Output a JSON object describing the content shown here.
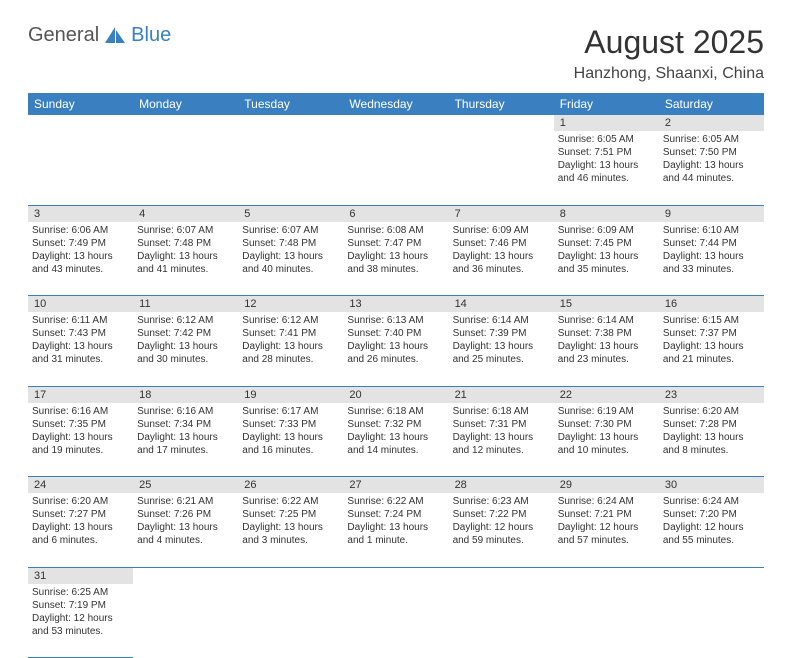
{
  "logo": {
    "part1": "General",
    "part2": "Blue"
  },
  "title": "August 2025",
  "location": "Hanzhong, Shaanxi, China",
  "colors": {
    "header_bg": "#3a7fbf",
    "daynum_bg": "#e3e3e3",
    "border": "#3a7fbf",
    "text": "#333"
  },
  "weekdays": [
    "Sunday",
    "Monday",
    "Tuesday",
    "Wednesday",
    "Thursday",
    "Friday",
    "Saturday"
  ],
  "weeks": [
    [
      null,
      null,
      null,
      null,
      null,
      {
        "n": "1",
        "sr": "Sunrise: 6:05 AM",
        "ss": "Sunset: 7:51 PM",
        "d1": "Daylight: 13 hours",
        "d2": "and 46 minutes."
      },
      {
        "n": "2",
        "sr": "Sunrise: 6:05 AM",
        "ss": "Sunset: 7:50 PM",
        "d1": "Daylight: 13 hours",
        "d2": "and 44 minutes."
      }
    ],
    [
      {
        "n": "3",
        "sr": "Sunrise: 6:06 AM",
        "ss": "Sunset: 7:49 PM",
        "d1": "Daylight: 13 hours",
        "d2": "and 43 minutes."
      },
      {
        "n": "4",
        "sr": "Sunrise: 6:07 AM",
        "ss": "Sunset: 7:48 PM",
        "d1": "Daylight: 13 hours",
        "d2": "and 41 minutes."
      },
      {
        "n": "5",
        "sr": "Sunrise: 6:07 AM",
        "ss": "Sunset: 7:48 PM",
        "d1": "Daylight: 13 hours",
        "d2": "and 40 minutes."
      },
      {
        "n": "6",
        "sr": "Sunrise: 6:08 AM",
        "ss": "Sunset: 7:47 PM",
        "d1": "Daylight: 13 hours",
        "d2": "and 38 minutes."
      },
      {
        "n": "7",
        "sr": "Sunrise: 6:09 AM",
        "ss": "Sunset: 7:46 PM",
        "d1": "Daylight: 13 hours",
        "d2": "and 36 minutes."
      },
      {
        "n": "8",
        "sr": "Sunrise: 6:09 AM",
        "ss": "Sunset: 7:45 PM",
        "d1": "Daylight: 13 hours",
        "d2": "and 35 minutes."
      },
      {
        "n": "9",
        "sr": "Sunrise: 6:10 AM",
        "ss": "Sunset: 7:44 PM",
        "d1": "Daylight: 13 hours",
        "d2": "and 33 minutes."
      }
    ],
    [
      {
        "n": "10",
        "sr": "Sunrise: 6:11 AM",
        "ss": "Sunset: 7:43 PM",
        "d1": "Daylight: 13 hours",
        "d2": "and 31 minutes."
      },
      {
        "n": "11",
        "sr": "Sunrise: 6:12 AM",
        "ss": "Sunset: 7:42 PM",
        "d1": "Daylight: 13 hours",
        "d2": "and 30 minutes."
      },
      {
        "n": "12",
        "sr": "Sunrise: 6:12 AM",
        "ss": "Sunset: 7:41 PM",
        "d1": "Daylight: 13 hours",
        "d2": "and 28 minutes."
      },
      {
        "n": "13",
        "sr": "Sunrise: 6:13 AM",
        "ss": "Sunset: 7:40 PM",
        "d1": "Daylight: 13 hours",
        "d2": "and 26 minutes."
      },
      {
        "n": "14",
        "sr": "Sunrise: 6:14 AM",
        "ss": "Sunset: 7:39 PM",
        "d1": "Daylight: 13 hours",
        "d2": "and 25 minutes."
      },
      {
        "n": "15",
        "sr": "Sunrise: 6:14 AM",
        "ss": "Sunset: 7:38 PM",
        "d1": "Daylight: 13 hours",
        "d2": "and 23 minutes."
      },
      {
        "n": "16",
        "sr": "Sunrise: 6:15 AM",
        "ss": "Sunset: 7:37 PM",
        "d1": "Daylight: 13 hours",
        "d2": "and 21 minutes."
      }
    ],
    [
      {
        "n": "17",
        "sr": "Sunrise: 6:16 AM",
        "ss": "Sunset: 7:35 PM",
        "d1": "Daylight: 13 hours",
        "d2": "and 19 minutes."
      },
      {
        "n": "18",
        "sr": "Sunrise: 6:16 AM",
        "ss": "Sunset: 7:34 PM",
        "d1": "Daylight: 13 hours",
        "d2": "and 17 minutes."
      },
      {
        "n": "19",
        "sr": "Sunrise: 6:17 AM",
        "ss": "Sunset: 7:33 PM",
        "d1": "Daylight: 13 hours",
        "d2": "and 16 minutes."
      },
      {
        "n": "20",
        "sr": "Sunrise: 6:18 AM",
        "ss": "Sunset: 7:32 PM",
        "d1": "Daylight: 13 hours",
        "d2": "and 14 minutes."
      },
      {
        "n": "21",
        "sr": "Sunrise: 6:18 AM",
        "ss": "Sunset: 7:31 PM",
        "d1": "Daylight: 13 hours",
        "d2": "and 12 minutes."
      },
      {
        "n": "22",
        "sr": "Sunrise: 6:19 AM",
        "ss": "Sunset: 7:30 PM",
        "d1": "Daylight: 13 hours",
        "d2": "and 10 minutes."
      },
      {
        "n": "23",
        "sr": "Sunrise: 6:20 AM",
        "ss": "Sunset: 7:28 PM",
        "d1": "Daylight: 13 hours",
        "d2": "and 8 minutes."
      }
    ],
    [
      {
        "n": "24",
        "sr": "Sunrise: 6:20 AM",
        "ss": "Sunset: 7:27 PM",
        "d1": "Daylight: 13 hours",
        "d2": "and 6 minutes."
      },
      {
        "n": "25",
        "sr": "Sunrise: 6:21 AM",
        "ss": "Sunset: 7:26 PM",
        "d1": "Daylight: 13 hours",
        "d2": "and 4 minutes."
      },
      {
        "n": "26",
        "sr": "Sunrise: 6:22 AM",
        "ss": "Sunset: 7:25 PM",
        "d1": "Daylight: 13 hours",
        "d2": "and 3 minutes."
      },
      {
        "n": "27",
        "sr": "Sunrise: 6:22 AM",
        "ss": "Sunset: 7:24 PM",
        "d1": "Daylight: 13 hours",
        "d2": "and 1 minute."
      },
      {
        "n": "28",
        "sr": "Sunrise: 6:23 AM",
        "ss": "Sunset: 7:22 PM",
        "d1": "Daylight: 12 hours",
        "d2": "and 59 minutes."
      },
      {
        "n": "29",
        "sr": "Sunrise: 6:24 AM",
        "ss": "Sunset: 7:21 PM",
        "d1": "Daylight: 12 hours",
        "d2": "and 57 minutes."
      },
      {
        "n": "30",
        "sr": "Sunrise: 6:24 AM",
        "ss": "Sunset: 7:20 PM",
        "d1": "Daylight: 12 hours",
        "d2": "and 55 minutes."
      }
    ],
    [
      {
        "n": "31",
        "sr": "Sunrise: 6:25 AM",
        "ss": "Sunset: 7:19 PM",
        "d1": "Daylight: 12 hours",
        "d2": "and 53 minutes."
      },
      null,
      null,
      null,
      null,
      null,
      null
    ]
  ]
}
